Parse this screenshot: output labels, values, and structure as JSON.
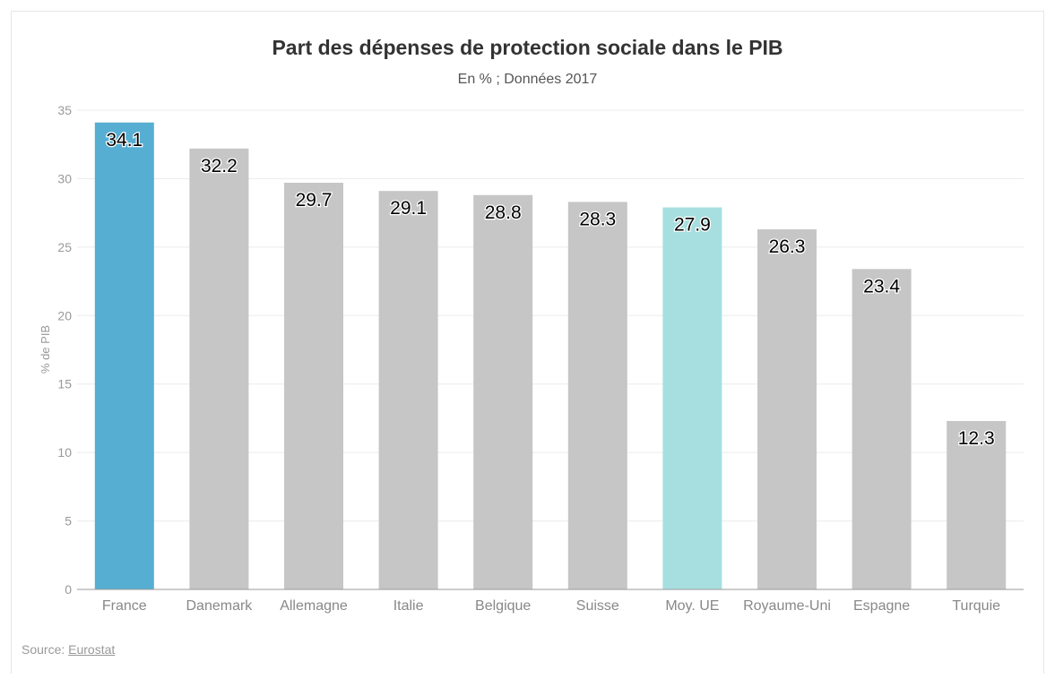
{
  "chart_data": {
    "type": "bar",
    "title": "Part des dépenses de protection sociale dans le PIB",
    "subtitle": "En % ; Données 2017",
    "ylabel": "% de PIB",
    "xlabel": "",
    "ylim": [
      0,
      35
    ],
    "yticks": [
      "0",
      "5",
      "10",
      "15",
      "20",
      "25",
      "30",
      "35"
    ],
    "grid": true,
    "categories": [
      "France",
      "Danemark",
      "Allemagne",
      "Italie",
      "Belgique",
      "Suisse",
      "Moy. UE",
      "Royaume-Uni",
      "Espagne",
      "Turquie"
    ],
    "values": [
      34.1,
      32.2,
      29.7,
      29.1,
      28.8,
      28.3,
      27.9,
      26.3,
      23.4,
      12.3
    ],
    "value_labels": [
      "34.1",
      "32.2",
      "29.7",
      "29.1",
      "28.8",
      "28.3",
      "27.9",
      "26.3",
      "23.4",
      "12.3"
    ],
    "colors": [
      "#56aed3",
      "#c6c6c6",
      "#c6c6c6",
      "#c6c6c6",
      "#c6c6c6",
      "#c6c6c6",
      "#a7dfe0",
      "#c6c6c6",
      "#c6c6c6",
      "#c6c6c6"
    ]
  },
  "source": {
    "prefix": "Source: ",
    "link_text": "Eurostat"
  }
}
